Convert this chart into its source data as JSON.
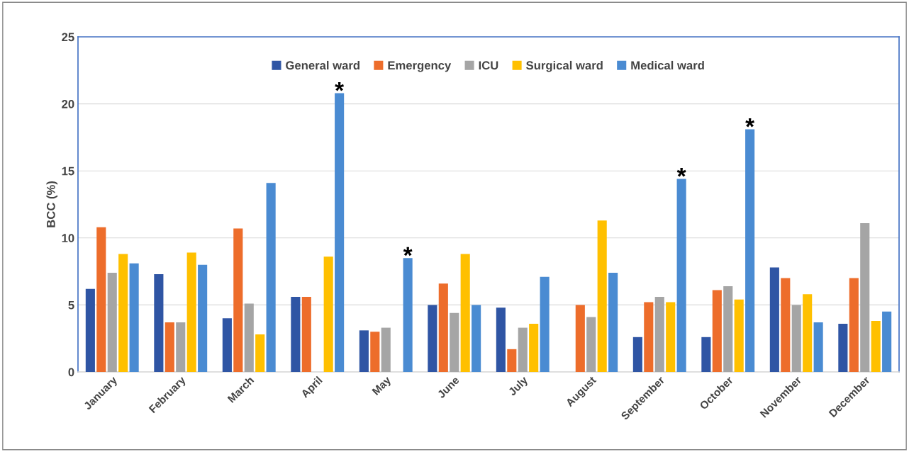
{
  "chart_data": {
    "type": "bar",
    "ylabel": "BCC (%)",
    "categories": [
      "January",
      "February",
      "March",
      "April",
      "May",
      "June",
      "July",
      "August",
      "September",
      "October",
      "November",
      "December"
    ],
    "series": [
      {
        "name": "General ward",
        "color": "#2f55a4",
        "values": [
          6.2,
          7.3,
          4.0,
          5.6,
          3.1,
          5.0,
          4.8,
          null,
          2.6,
          2.6,
          7.8,
          3.6
        ]
      },
      {
        "name": "Emergency",
        "color": "#ed6d2b",
        "values": [
          10.8,
          3.7,
          10.7,
          5.6,
          3.0,
          6.6,
          1.7,
          5.0,
          5.2,
          6.1,
          7.0,
          7.0
        ]
      },
      {
        "name": "ICU",
        "color": "#a5a5a5",
        "values": [
          7.4,
          3.7,
          5.1,
          null,
          3.3,
          4.4,
          3.3,
          4.1,
          5.6,
          6.4,
          5.0,
          11.1
        ]
      },
      {
        "name": "Surgical ward",
        "color": "#ffc000",
        "values": [
          8.8,
          8.9,
          2.8,
          8.6,
          null,
          8.8,
          3.6,
          11.3,
          5.2,
          5.4,
          5.8,
          3.8
        ]
      },
      {
        "name": "Medical ward",
        "color": "#4a8bd2",
        "values": [
          8.1,
          8.0,
          14.1,
          20.8,
          8.5,
          5.0,
          7.1,
          7.4,
          14.4,
          18.1,
          3.7,
          4.5
        ]
      }
    ],
    "annotations": [
      "*",
      "*",
      "*",
      "*"
    ],
    "ylim": [
      0,
      25
    ],
    "yticks": [
      0,
      5,
      10,
      15,
      20,
      25
    ],
    "grid": "y",
    "legend": "top"
  }
}
